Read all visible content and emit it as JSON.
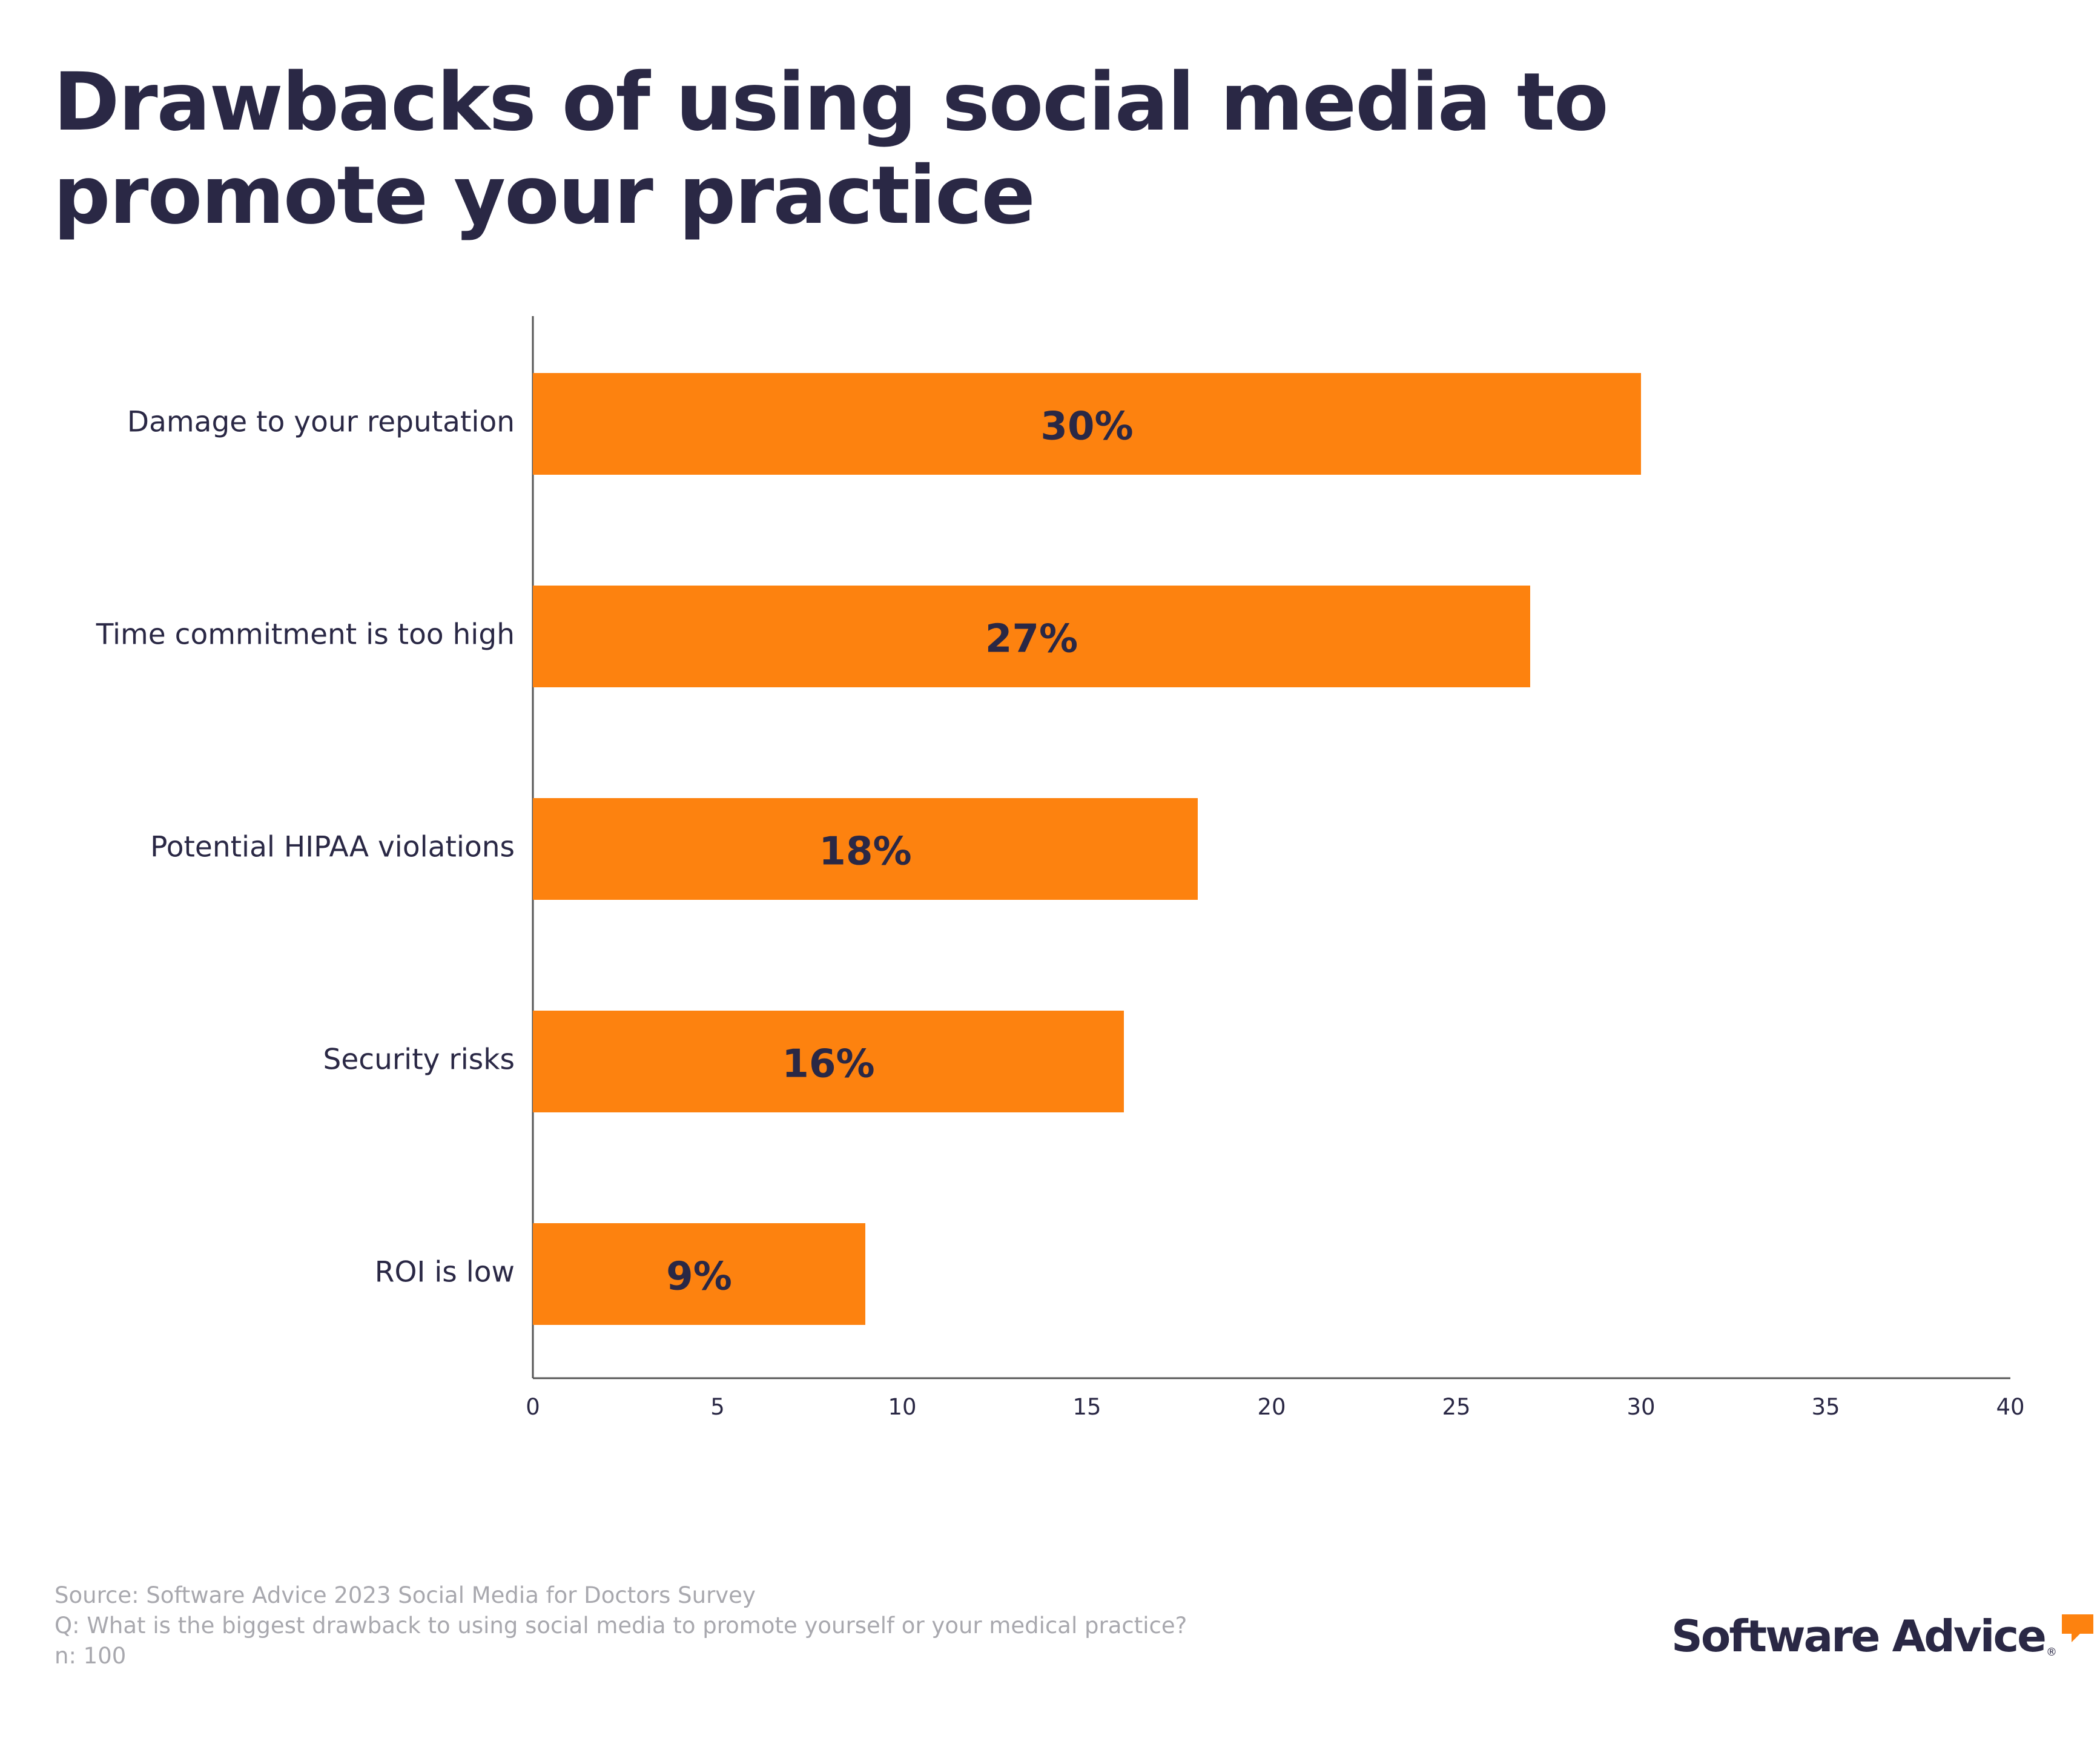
{
  "chart_data": {
    "type": "bar",
    "orientation": "horizontal",
    "title": "Drawbacks of using social media to promote your practice",
    "categories": [
      "Damage to your reputation",
      "Time commitment is too high",
      "Potential HIPAA violations",
      "Security risks",
      "ROI is low"
    ],
    "values": [
      30,
      27,
      18,
      16,
      9
    ],
    "data_labels": [
      "30%",
      "27%",
      "18%",
      "16%",
      "9%"
    ],
    "xlim": [
      0,
      40
    ],
    "xticks": [
      "0",
      "5",
      "10",
      "15",
      "20",
      "25",
      "30",
      "35",
      "40"
    ],
    "xlabel": "",
    "ylabel": "",
    "grid": false,
    "bar_color": "#fd820f"
  },
  "footer": {
    "source": "Source: Software Advice 2023 Social Media for Doctors Survey",
    "question": "Q: What is the biggest drawback to using social media to promote yourself or your medical practice?",
    "sample": "n: 100"
  },
  "brand": {
    "name": "Software Advice",
    "registered": "®",
    "accent_color": "#fd820f"
  },
  "colors": {
    "text": "#2a2845",
    "axis": "#555555",
    "footer_text": "#a8a8ae"
  }
}
